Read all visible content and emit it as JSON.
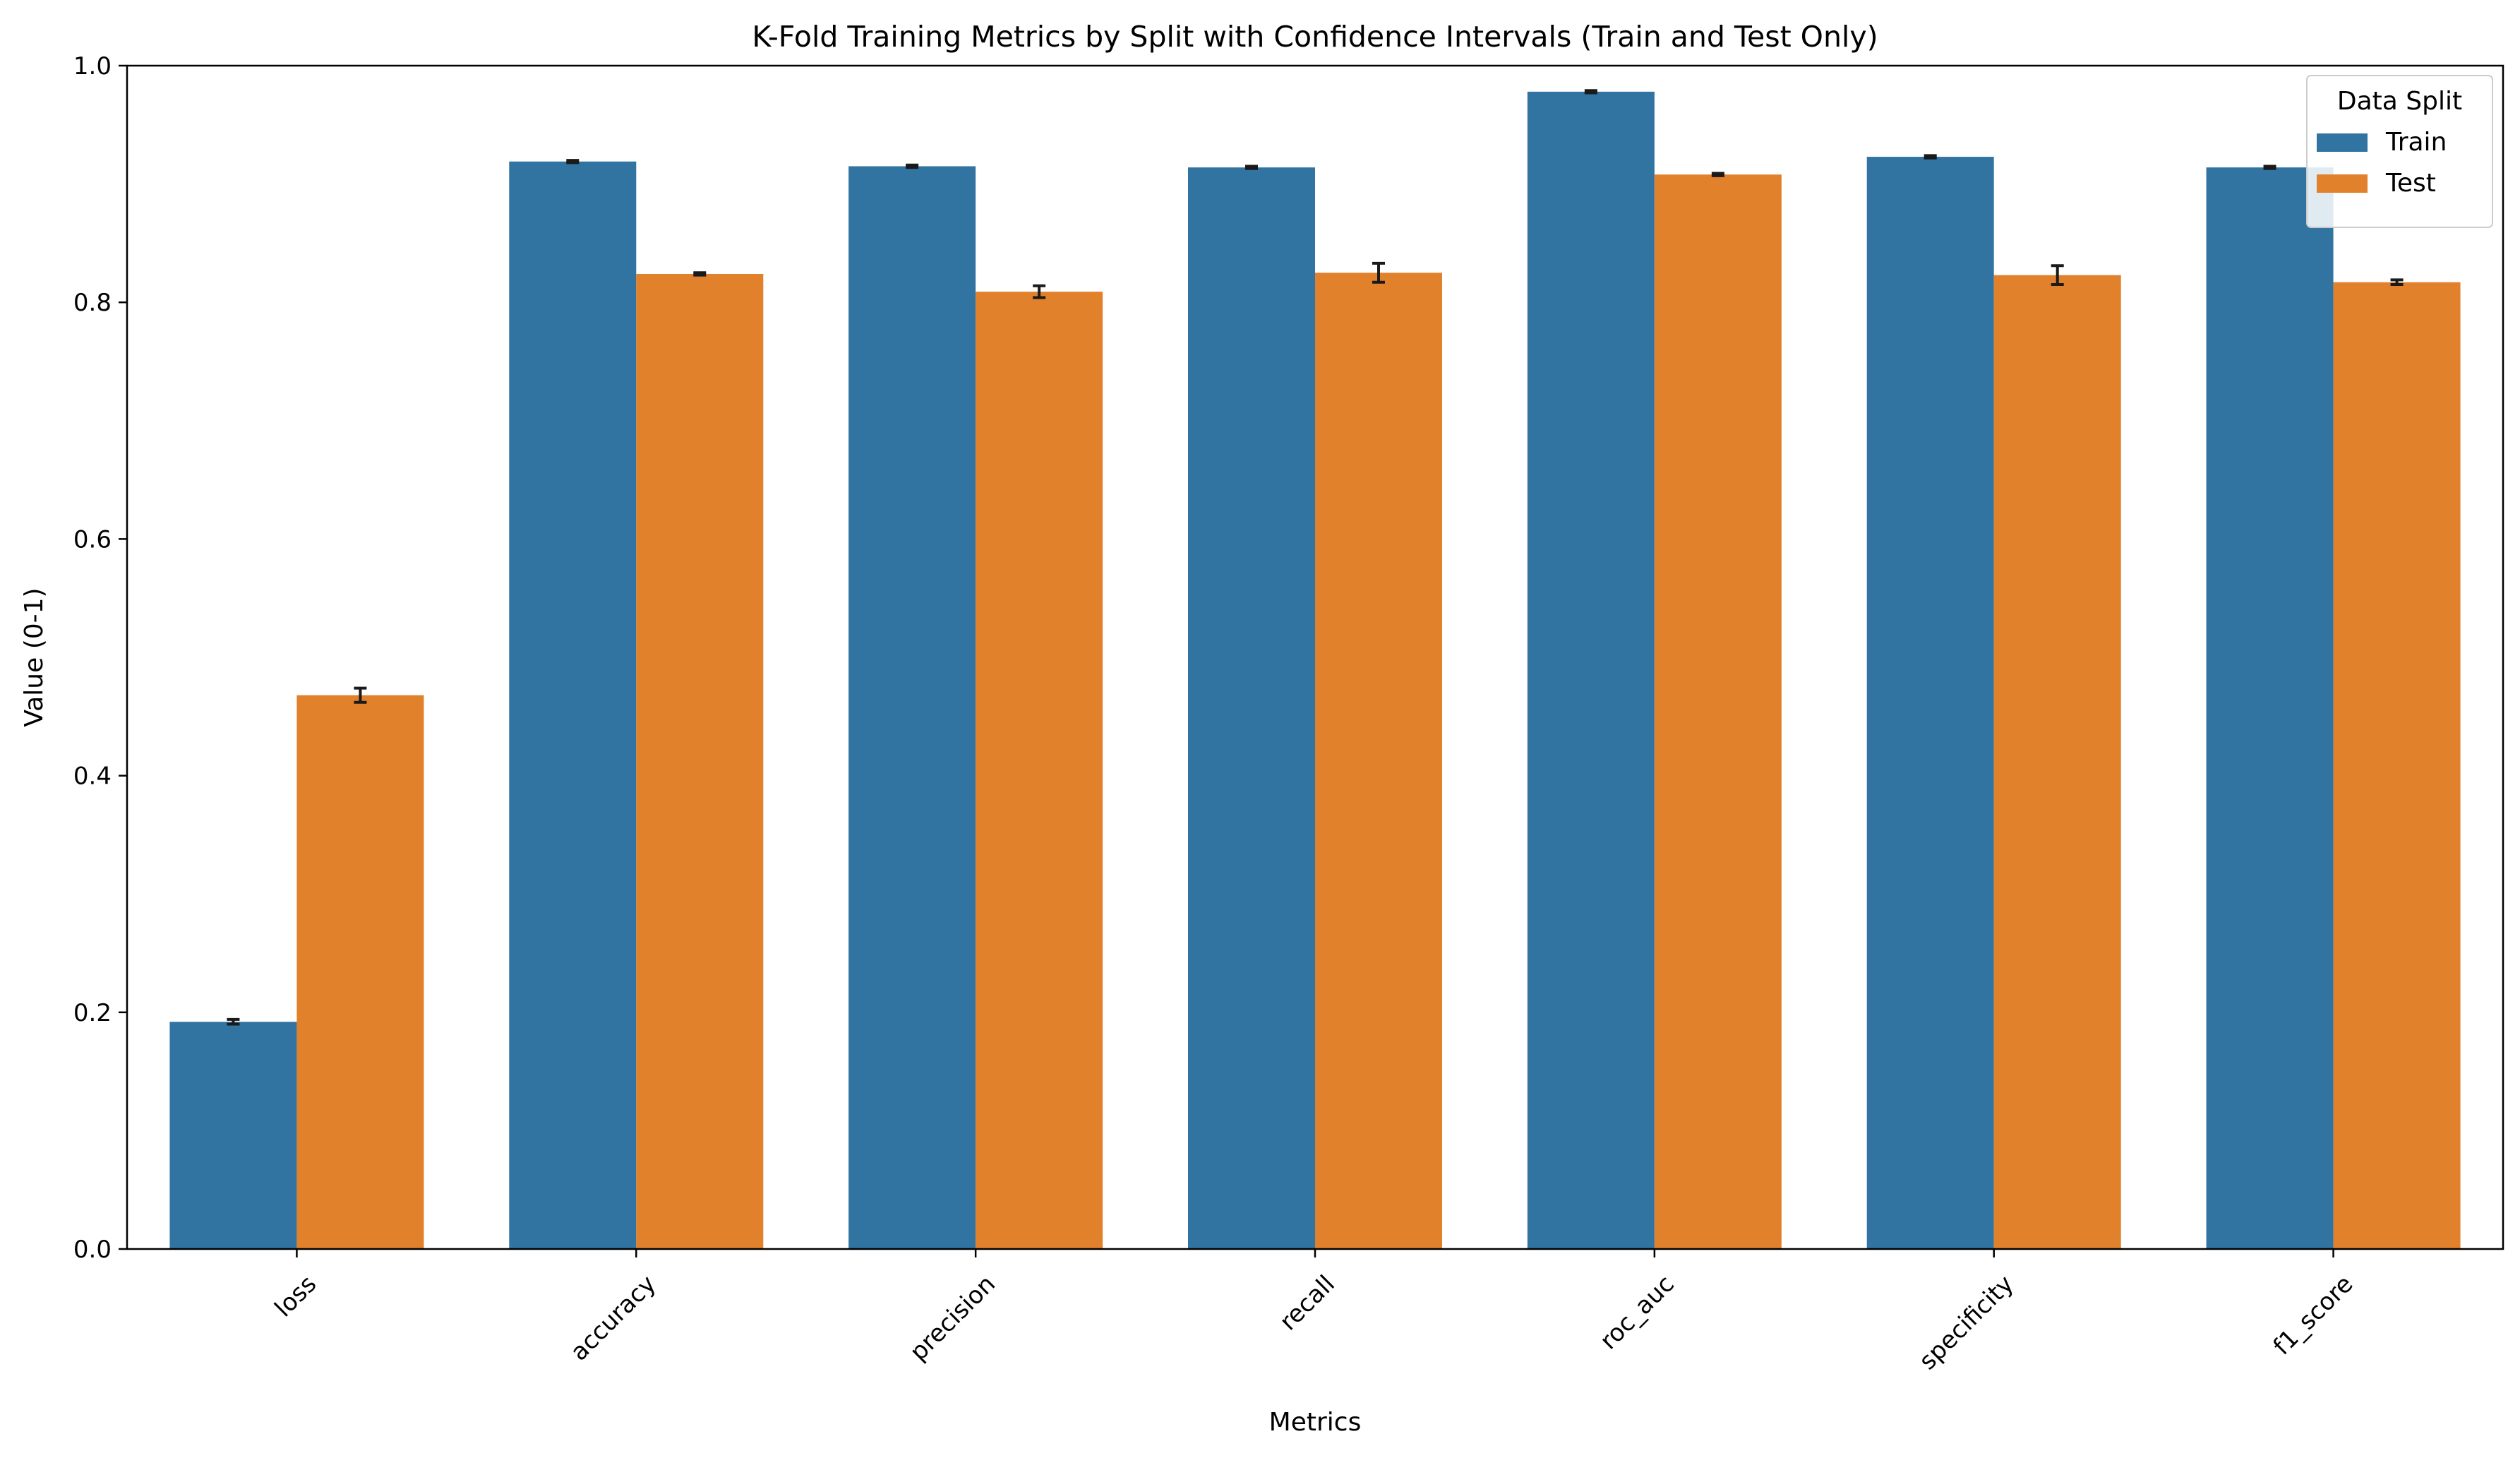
{
  "chart_data": {
    "type": "bar",
    "title": "K-Fold Training Metrics by Split with Confidence Intervals (Train and Test Only)",
    "xlabel": "Metrics",
    "ylabel": "Value (0-1)",
    "ylim": [
      0,
      1
    ],
    "yticks": [
      "0.0",
      "0.2",
      "0.4",
      "0.6",
      "0.8",
      "1.0"
    ],
    "categories": [
      "loss",
      "accuracy",
      "precision",
      "recall",
      "roc_auc",
      "specificity",
      "f1_score"
    ],
    "series": [
      {
        "name": "Train",
        "color": "#3274a1",
        "values": [
          0.192,
          0.919,
          0.915,
          0.914,
          0.978,
          0.923,
          0.914
        ],
        "ci": [
          0.002,
          0.001,
          0.001,
          0.001,
          0.001,
          0.001,
          0.001
        ]
      },
      {
        "name": "Test",
        "color": "#e1812c",
        "values": [
          0.468,
          0.824,
          0.809,
          0.825,
          0.908,
          0.823,
          0.817
        ],
        "ci": [
          0.006,
          0.001,
          0.005,
          0.008,
          0.001,
          0.008,
          0.002
        ]
      }
    ],
    "legend": {
      "title": "Data Split",
      "placement": "top-right"
    },
    "grid": false
  }
}
